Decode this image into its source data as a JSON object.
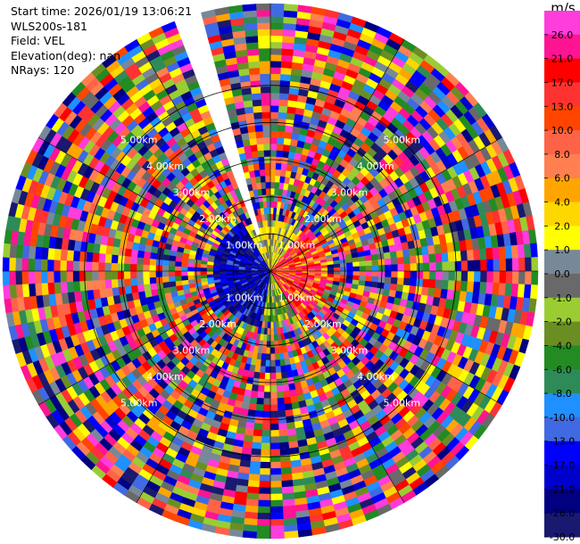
{
  "header": {
    "start_time": "Start time: 2026/01/19 13:06:21",
    "instrument": "WLS200s-181",
    "field": "Field: VEL",
    "elevation": "Elevation(deg): nan",
    "nrays": "NRays: 120"
  },
  "colorbar": {
    "unit": "m/s",
    "tick_labels": [
      "26.0",
      "21.0",
      "17.0",
      "13.0",
      "10.0",
      "8.0",
      "6.0",
      "4.0",
      "2.0",
      "1.0",
      "0.0",
      "-1.0",
      "-2.0",
      "-4.0",
      "-6.0",
      "-8.0",
      "-10.0",
      "-13.0",
      "-17.0",
      "-21.0",
      "-26.0",
      "-30.0"
    ],
    "bands": [
      {
        "from": 26.0,
        "to": 30.0,
        "color": "#ff3cdc"
      },
      {
        "from": 21.0,
        "to": 26.0,
        "color": "#ff1493"
      },
      {
        "from": 17.0,
        "to": 21.0,
        "color": "#ff0000"
      },
      {
        "from": 13.0,
        "to": 17.0,
        "color": "#ff3232"
      },
      {
        "from": 10.0,
        "to": 13.0,
        "color": "#ff4500"
      },
      {
        "from": 8.0,
        "to": 10.0,
        "color": "#ff6347"
      },
      {
        "from": 6.0,
        "to": 8.0,
        "color": "#ff7f50"
      },
      {
        "from": 4.0,
        "to": 6.0,
        "color": "#ffa500"
      },
      {
        "from": 2.0,
        "to": 4.0,
        "color": "#ffd700"
      },
      {
        "from": 1.0,
        "to": 2.0,
        "color": "#ffff00"
      },
      {
        "from": 0.0,
        "to": 1.0,
        "color": "#778899"
      },
      {
        "from": -1.0,
        "to": 0.0,
        "color": "#696969"
      },
      {
        "from": -2.0,
        "to": -1.0,
        "color": "#9acd32"
      },
      {
        "from": -4.0,
        "to": -2.0,
        "color": "#6b8e23"
      },
      {
        "from": -6.0,
        "to": -4.0,
        "color": "#228b22"
      },
      {
        "from": -8.0,
        "to": -6.0,
        "color": "#2e8b57"
      },
      {
        "from": -10.0,
        "to": -8.0,
        "color": "#1e90ff"
      },
      {
        "from": -13.0,
        "to": -10.0,
        "color": "#4169e1"
      },
      {
        "from": -17.0,
        "to": -13.0,
        "color": "#0000ff"
      },
      {
        "from": -21.0,
        "to": -17.0,
        "color": "#0000cd"
      },
      {
        "from": -26.0,
        "to": -21.0,
        "color": "#000080"
      },
      {
        "from": -30.0,
        "to": -26.0,
        "color": "#191970"
      }
    ]
  },
  "chart_data": {
    "type": "heatmap",
    "projection": "polar (PPI)",
    "field": "VEL",
    "units": "m/s",
    "nrays": 120,
    "range_rings_km": [
      1,
      2,
      3,
      4,
      5
    ],
    "range_labels": [
      {
        "ring_km": 1,
        "label": "1.00km"
      },
      {
        "ring_km": 2,
        "label": "2.00km"
      },
      {
        "ring_km": 3,
        "label": "3.00km"
      },
      {
        "ring_km": 4,
        "label": "4.00km"
      },
      {
        "ring_km": 5,
        "label": "5.00km"
      }
    ],
    "max_range_km": 7.2,
    "value_range": [
      -30.0,
      30.0
    ],
    "missing_sector_azimuth_deg": [
      338,
      345
    ]
  }
}
